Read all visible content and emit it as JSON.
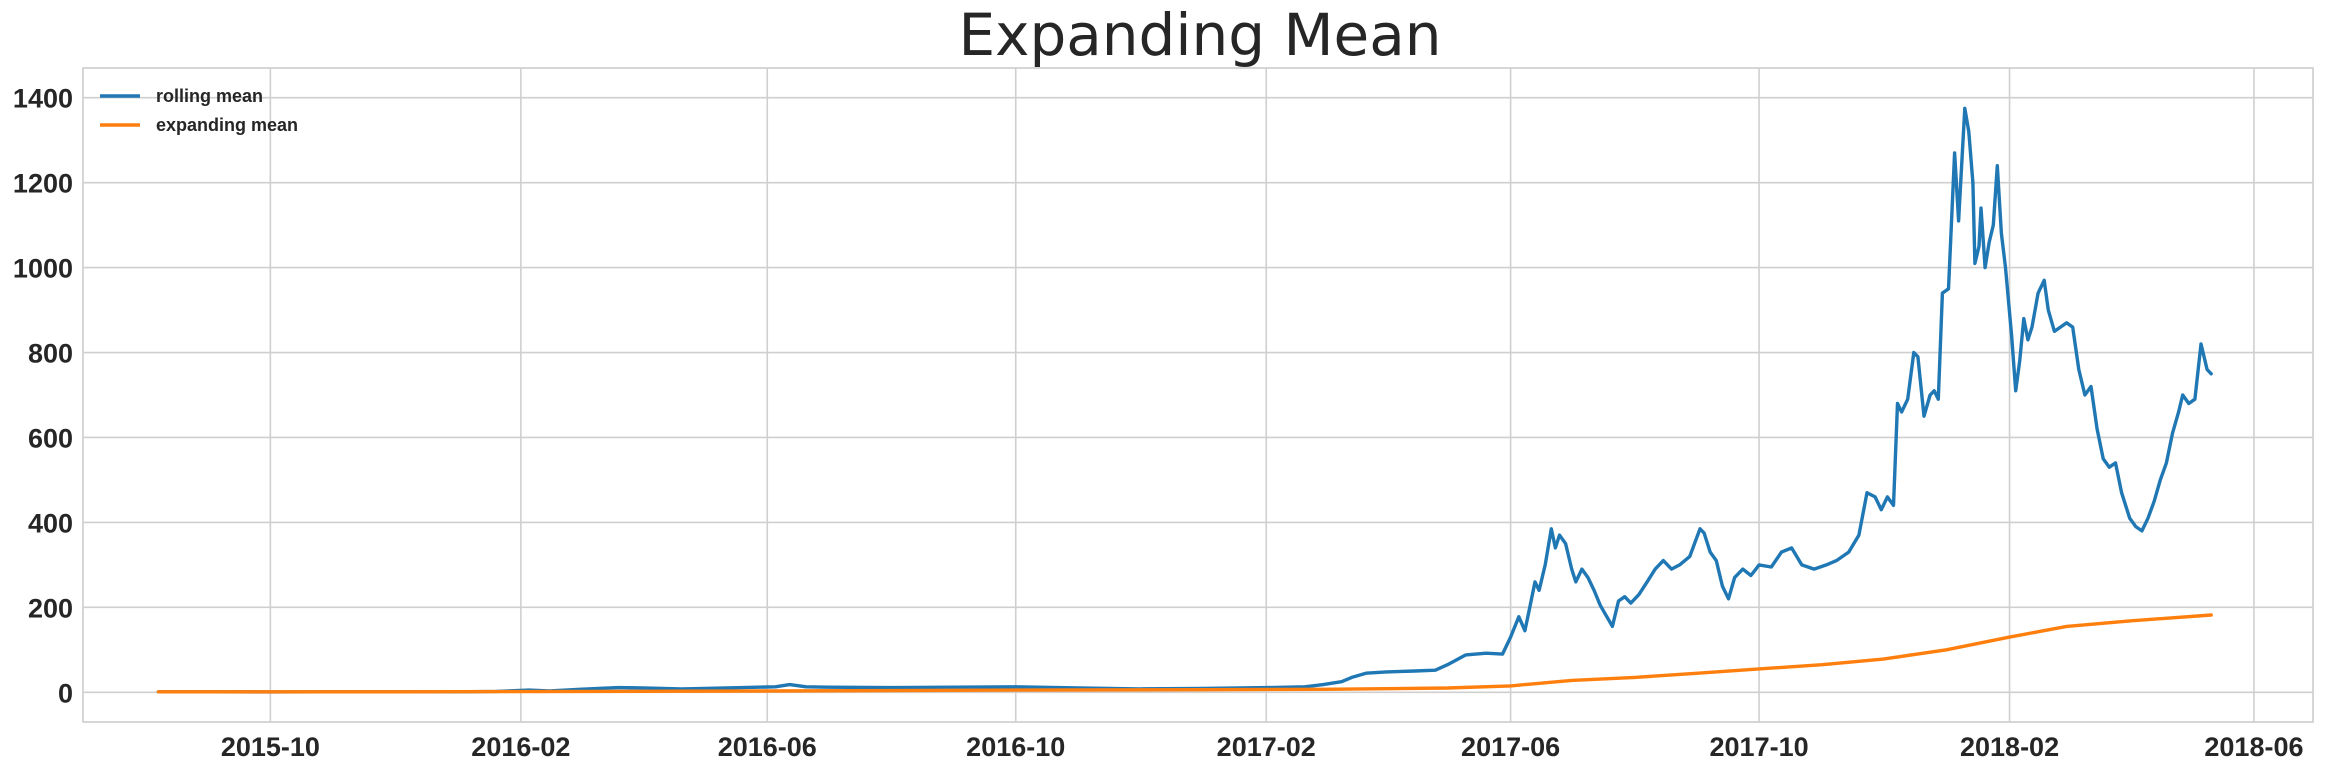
{
  "chart_data": {
    "type": "line",
    "title": "Expanding Mean",
    "xlabel": "",
    "ylabel": "",
    "x_axis_type": "date",
    "xlim": [
      "2015-07-01",
      "2018-06-30"
    ],
    "ylim": [
      -70,
      1470
    ],
    "x_ticks": [
      "2015-10",
      "2016-02",
      "2016-06",
      "2016-10",
      "2017-02",
      "2017-06",
      "2017-10",
      "2018-02",
      "2018-06"
    ],
    "y_ticks": [
      0,
      200,
      400,
      600,
      800,
      1000,
      1200,
      1400
    ],
    "grid": true,
    "legend_position": "top-left",
    "series": [
      {
        "name": "rolling mean",
        "color": "#1f77b4",
        "points": [
          [
            "2015-08-07",
            1
          ],
          [
            "2015-09-01",
            1
          ],
          [
            "2015-10-01",
            0.8
          ],
          [
            "2015-11-01",
            1
          ],
          [
            "2015-12-01",
            1
          ],
          [
            "2016-01-01",
            1
          ],
          [
            "2016-01-20",
            2
          ],
          [
            "2016-02-05",
            5
          ],
          [
            "2016-02-15",
            3
          ],
          [
            "2016-03-01",
            7
          ],
          [
            "2016-03-10",
            9
          ],
          [
            "2016-03-20",
            11
          ],
          [
            "2016-04-01",
            10
          ],
          [
            "2016-04-20",
            8
          ],
          [
            "2016-05-01",
            9
          ],
          [
            "2016-05-20",
            11
          ],
          [
            "2016-06-05",
            13
          ],
          [
            "2016-06-12",
            18
          ],
          [
            "2016-06-20",
            13
          ],
          [
            "2016-07-01",
            12
          ],
          [
            "2016-08-01",
            11
          ],
          [
            "2016-09-01",
            12
          ],
          [
            "2016-10-01",
            13
          ],
          [
            "2016-11-01",
            10
          ],
          [
            "2016-12-01",
            8
          ],
          [
            "2017-01-01",
            9
          ],
          [
            "2017-02-01",
            11
          ],
          [
            "2017-02-20",
            13
          ],
          [
            "2017-03-01",
            18
          ],
          [
            "2017-03-10",
            25
          ],
          [
            "2017-03-15",
            35
          ],
          [
            "2017-03-22",
            45
          ],
          [
            "2017-04-01",
            48
          ],
          [
            "2017-04-15",
            50
          ],
          [
            "2017-04-25",
            52
          ],
          [
            "2017-05-01",
            65
          ],
          [
            "2017-05-10",
            88
          ],
          [
            "2017-05-20",
            92
          ],
          [
            "2017-05-28",
            90
          ],
          [
            "2017-06-01",
            130
          ],
          [
            "2017-06-05",
            178
          ],
          [
            "2017-06-08",
            145
          ],
          [
            "2017-06-10",
            190
          ],
          [
            "2017-06-13",
            260
          ],
          [
            "2017-06-15",
            240
          ],
          [
            "2017-06-18",
            300
          ],
          [
            "2017-06-21",
            385
          ],
          [
            "2017-06-23",
            340
          ],
          [
            "2017-06-25",
            370
          ],
          [
            "2017-06-28",
            350
          ],
          [
            "2017-07-01",
            290
          ],
          [
            "2017-07-03",
            260
          ],
          [
            "2017-07-06",
            290
          ],
          [
            "2017-07-09",
            270
          ],
          [
            "2017-07-12",
            240
          ],
          [
            "2017-07-15",
            205
          ],
          [
            "2017-07-18",
            180
          ],
          [
            "2017-07-21",
            155
          ],
          [
            "2017-07-24",
            215
          ],
          [
            "2017-07-27",
            225
          ],
          [
            "2017-07-30",
            210
          ],
          [
            "2017-08-03",
            230
          ],
          [
            "2017-08-07",
            260
          ],
          [
            "2017-08-11",
            290
          ],
          [
            "2017-08-15",
            310
          ],
          [
            "2017-08-19",
            290
          ],
          [
            "2017-08-23",
            300
          ],
          [
            "2017-08-28",
            320
          ],
          [
            "2017-09-02",
            385
          ],
          [
            "2017-09-04",
            375
          ],
          [
            "2017-09-07",
            330
          ],
          [
            "2017-09-10",
            310
          ],
          [
            "2017-09-13",
            250
          ],
          [
            "2017-09-16",
            220
          ],
          [
            "2017-09-19",
            270
          ],
          [
            "2017-09-23",
            290
          ],
          [
            "2017-09-27",
            275
          ],
          [
            "2017-10-01",
            300
          ],
          [
            "2017-10-07",
            295
          ],
          [
            "2017-10-12",
            330
          ],
          [
            "2017-10-17",
            340
          ],
          [
            "2017-10-22",
            300
          ],
          [
            "2017-10-28",
            290
          ],
          [
            "2017-11-03",
            300
          ],
          [
            "2017-11-08",
            310
          ],
          [
            "2017-11-14",
            330
          ],
          [
            "2017-11-19",
            370
          ],
          [
            "2017-11-23",
            470
          ],
          [
            "2017-11-27",
            460
          ],
          [
            "2017-11-30",
            430
          ],
          [
            "2017-12-03",
            460
          ],
          [
            "2017-12-06",
            440
          ],
          [
            "2017-12-08",
            680
          ],
          [
            "2017-12-10",
            660
          ],
          [
            "2017-12-13",
            690
          ],
          [
            "2017-12-16",
            800
          ],
          [
            "2017-12-18",
            790
          ],
          [
            "2017-12-21",
            650
          ],
          [
            "2017-12-24",
            700
          ],
          [
            "2017-12-26",
            710
          ],
          [
            "2017-12-28",
            690
          ],
          [
            "2017-12-30",
            940
          ],
          [
            "2018-01-02",
            950
          ],
          [
            "2018-01-05",
            1270
          ],
          [
            "2018-01-07",
            1110
          ],
          [
            "2018-01-08",
            1200
          ],
          [
            "2018-01-10",
            1375
          ],
          [
            "2018-01-12",
            1320
          ],
          [
            "2018-01-14",
            1200
          ],
          [
            "2018-01-15",
            1010
          ],
          [
            "2018-01-17",
            1050
          ],
          [
            "2018-01-18",
            1140
          ],
          [
            "2018-01-20",
            1000
          ],
          [
            "2018-01-22",
            1060
          ],
          [
            "2018-01-24",
            1100
          ],
          [
            "2018-01-26",
            1240
          ],
          [
            "2018-01-28",
            1080
          ],
          [
            "2018-01-30",
            1000
          ],
          [
            "2018-02-02",
            840
          ],
          [
            "2018-02-04",
            710
          ],
          [
            "2018-02-06",
            780
          ],
          [
            "2018-02-08",
            880
          ],
          [
            "2018-02-10",
            830
          ],
          [
            "2018-02-12",
            860
          ],
          [
            "2018-02-15",
            940
          ],
          [
            "2018-02-18",
            970
          ],
          [
            "2018-02-20",
            900
          ],
          [
            "2018-02-23",
            850
          ],
          [
            "2018-02-26",
            860
          ],
          [
            "2018-03-01",
            870
          ],
          [
            "2018-03-04",
            860
          ],
          [
            "2018-03-07",
            760
          ],
          [
            "2018-03-10",
            700
          ],
          [
            "2018-03-13",
            720
          ],
          [
            "2018-03-16",
            620
          ],
          [
            "2018-03-19",
            550
          ],
          [
            "2018-03-22",
            530
          ],
          [
            "2018-03-25",
            540
          ],
          [
            "2018-03-28",
            470
          ],
          [
            "2018-04-01",
            410
          ],
          [
            "2018-04-04",
            390
          ],
          [
            "2018-04-07",
            380
          ],
          [
            "2018-04-10",
            410
          ],
          [
            "2018-04-13",
            450
          ],
          [
            "2018-04-16",
            500
          ],
          [
            "2018-04-19",
            540
          ],
          [
            "2018-04-22",
            610
          ],
          [
            "2018-04-25",
            660
          ],
          [
            "2018-04-27",
            700
          ],
          [
            "2018-04-30",
            680
          ],
          [
            "2018-05-03",
            690
          ],
          [
            "2018-05-06",
            820
          ],
          [
            "2018-05-09",
            760
          ],
          [
            "2018-05-11",
            750
          ]
        ]
      },
      {
        "name": "expanding mean",
        "color": "#ff7f0e",
        "points": [
          [
            "2015-08-07",
            1
          ],
          [
            "2015-12-01",
            1
          ],
          [
            "2016-03-01",
            2
          ],
          [
            "2016-06-01",
            3
          ],
          [
            "2016-10-01",
            5
          ],
          [
            "2017-01-01",
            6
          ],
          [
            "2017-03-01",
            7
          ],
          [
            "2017-05-01",
            10
          ],
          [
            "2017-06-01",
            15
          ],
          [
            "2017-07-01",
            28
          ],
          [
            "2017-08-01",
            35
          ],
          [
            "2017-09-01",
            45
          ],
          [
            "2017-10-01",
            55
          ],
          [
            "2017-11-01",
            65
          ],
          [
            "2017-12-01",
            78
          ],
          [
            "2018-01-01",
            100
          ],
          [
            "2018-02-01",
            130
          ],
          [
            "2018-03-01",
            155
          ],
          [
            "2018-04-01",
            168
          ],
          [
            "2018-05-11",
            182
          ]
        ]
      }
    ]
  }
}
